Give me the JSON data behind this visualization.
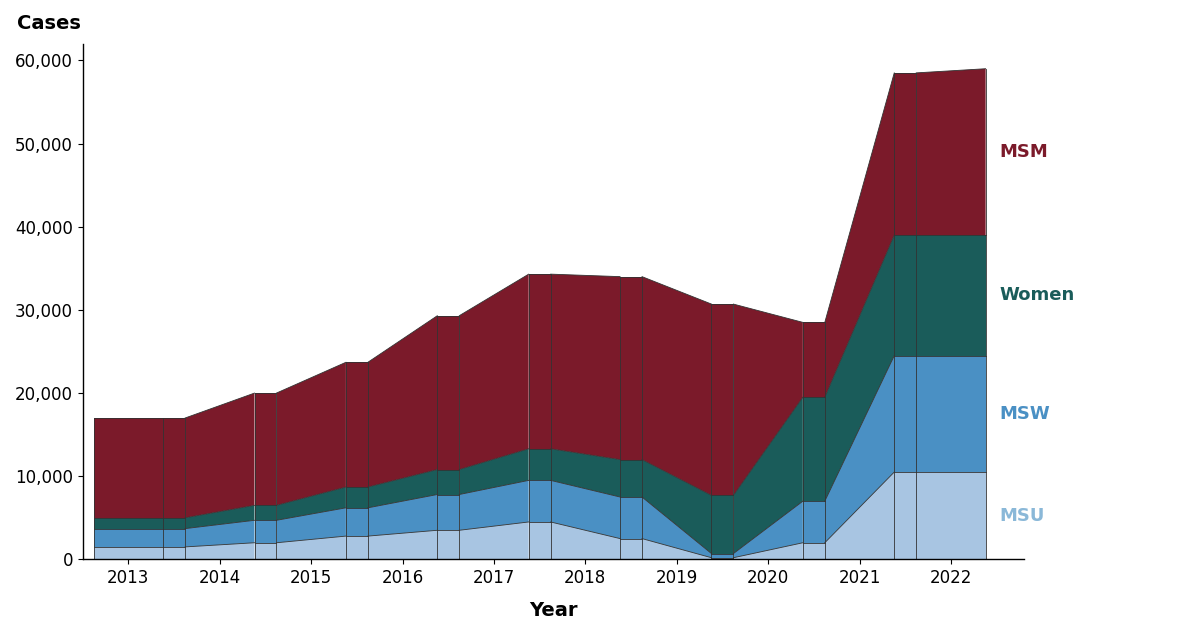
{
  "years": [
    2013,
    2014,
    2015,
    2016,
    2017,
    2018,
    2019,
    2020,
    2021,
    2022
  ],
  "colors": {
    "MSU": "#a8c5e2",
    "MSW": "#4a90c4",
    "Women": "#1a5c5a",
    "MSM": "#7b1a2a"
  },
  "ylabel": "Cases",
  "xlabel": "Year",
  "ylim": [
    0,
    62000
  ],
  "yticks": [
    0,
    10000,
    20000,
    30000,
    40000,
    50000,
    60000
  ],
  "ytick_labels": [
    "0",
    "10,000",
    "20,000",
    "30,000",
    "40,000",
    "50,000",
    "60,000"
  ],
  "background_color": "#ffffff",
  "labels": {
    "MSM": "MSM",
    "Women": "Women",
    "MSW": "MSW",
    "MSU": "MSU"
  },
  "label_colors": {
    "MSM": "#7b1a2a",
    "Women": "#1a5c5a",
    "MSW": "#4a90c4",
    "MSU": "#8ab8d8"
  },
  "ribbon": {
    "MSU_L": [
      1500,
      1500,
      2000,
      2800,
      3500,
      4500,
      2500,
      200,
      2000,
      10500
    ],
    "MSU_R": [
      1500,
      2000,
      2800,
      3500,
      4500,
      2500,
      200,
      2000,
      10500,
      10500
    ],
    "MSW_L": [
      2200,
      2200,
      2700,
      3400,
      4300,
      5000,
      5000,
      500,
      5000,
      14000
    ],
    "MSW_R": [
      2200,
      2700,
      3400,
      4300,
      5000,
      5000,
      500,
      5000,
      14000,
      14000
    ],
    "Women_L": [
      1300,
      1300,
      1800,
      2500,
      3000,
      3800,
      4500,
      7000,
      12500,
      14500
    ],
    "Women_R": [
      1300,
      1800,
      2500,
      3000,
      3800,
      4500,
      7000,
      12500,
      14500,
      14500
    ],
    "MSM_L": [
      12000,
      12000,
      13500,
      15000,
      18500,
      21000,
      22000,
      23000,
      9000,
      19500
    ],
    "MSM_R": [
      12000,
      13500,
      15000,
      18500,
      21000,
      22000,
      23000,
      9000,
      19500,
      20000
    ]
  }
}
